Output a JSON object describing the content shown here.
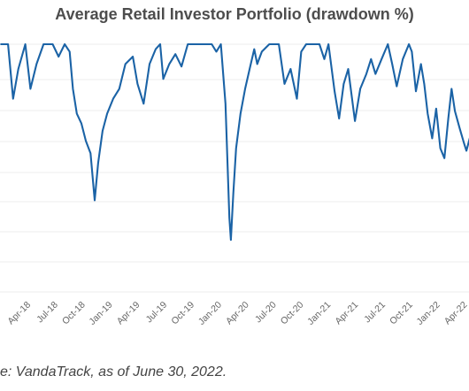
{
  "chart_data": {
    "type": "line",
    "title": "Average Retail Investor Portfolio (drawdown %)",
    "source": "e: VandaTrack, as of June 30, 2022.",
    "xlabel": "",
    "ylabel": "",
    "grid": true,
    "x_tick_labels": [
      "Apr-18",
      "Jul-18",
      "Oct-18",
      "Jan-19",
      "Apr-19",
      "Jul-19",
      "Oct-19",
      "Jan-20",
      "Apr-20",
      "Jul-20",
      "Oct-20",
      "Jan-21",
      "Apr-21",
      "Jul-21",
      "Oct-21",
      "Jan-22",
      "Apr-22"
    ],
    "series": [
      {
        "color": "#1b63a6",
        "points": [
          [
            "2018-02-15",
            0.0
          ],
          [
            "2018-03-08",
            0.0
          ],
          [
            "2018-03-25",
            -11.0
          ],
          [
            "2018-04-12",
            -5.0
          ],
          [
            "2018-05-05",
            0.0
          ],
          [
            "2018-05-22",
            -9.0
          ],
          [
            "2018-06-12",
            -4.0
          ],
          [
            "2018-07-05",
            0.0
          ],
          [
            "2018-08-05",
            0.0
          ],
          [
            "2018-08-25",
            -2.5
          ],
          [
            "2018-09-15",
            0.0
          ],
          [
            "2018-10-01",
            -1.5
          ],
          [
            "2018-10-12",
            -9.0
          ],
          [
            "2018-10-25",
            -14.0
          ],
          [
            "2018-11-10",
            -16.0
          ],
          [
            "2018-11-25",
            -19.5
          ],
          [
            "2018-12-10",
            -22.0
          ],
          [
            "2018-12-24",
            -31.5
          ],
          [
            "2019-01-05",
            -24.0
          ],
          [
            "2019-01-20",
            -17.5
          ],
          [
            "2019-02-05",
            -14.0
          ],
          [
            "2019-02-25",
            -11.0
          ],
          [
            "2019-03-15",
            -9.0
          ],
          [
            "2019-04-05",
            -4.0
          ],
          [
            "2019-04-30",
            -2.5
          ],
          [
            "2019-05-15",
            -8.0
          ],
          [
            "2019-06-05",
            -12.0
          ],
          [
            "2019-06-25",
            -4.0
          ],
          [
            "2019-07-15",
            -1.0
          ],
          [
            "2019-07-30",
            0.0
          ],
          [
            "2019-08-10",
            -7.0
          ],
          [
            "2019-08-30",
            -4.0
          ],
          [
            "2019-09-20",
            -2.0
          ],
          [
            "2019-10-10",
            -4.5
          ],
          [
            "2019-10-31",
            0.0
          ],
          [
            "2019-12-31",
            0.0
          ],
          [
            "2020-01-20",
            0.0
          ],
          [
            "2020-02-05",
            -1.5
          ],
          [
            "2020-02-20",
            0.0
          ],
          [
            "2020-03-05",
            -12.0
          ],
          [
            "2020-03-12",
            -24.0
          ],
          [
            "2020-03-18",
            -35.0
          ],
          [
            "2020-03-23",
            -39.5
          ],
          [
            "2020-04-01",
            -30.0
          ],
          [
            "2020-04-10",
            -21.0
          ],
          [
            "2020-04-25",
            -14.0
          ],
          [
            "2020-05-10",
            -9.0
          ],
          [
            "2020-05-25",
            -5.0
          ],
          [
            "2020-06-10",
            -1.0
          ],
          [
            "2020-06-20",
            -4.0
          ],
          [
            "2020-07-05",
            -1.5
          ],
          [
            "2020-07-30",
            0.0
          ],
          [
            "2020-09-01",
            0.0
          ],
          [
            "2020-09-20",
            -8.0
          ],
          [
            "2020-10-10",
            -5.0
          ],
          [
            "2020-10-31",
            -11.0
          ],
          [
            "2020-11-15",
            -1.5
          ],
          [
            "2020-12-01",
            0.0
          ],
          [
            "2021-01-15",
            0.0
          ],
          [
            "2021-02-01",
            -3.0
          ],
          [
            "2021-02-15",
            0.0
          ],
          [
            "2021-03-05",
            -9.5
          ],
          [
            "2021-03-20",
            -15.0
          ],
          [
            "2021-04-05",
            -8.0
          ],
          [
            "2021-04-20",
            -5.0
          ],
          [
            "2021-05-12",
            -15.5
          ],
          [
            "2021-05-30",
            -9.0
          ],
          [
            "2021-06-20",
            -6.0
          ],
          [
            "2021-07-05",
            -3.0
          ],
          [
            "2021-07-20",
            -6.0
          ],
          [
            "2021-08-10",
            -3.0
          ],
          [
            "2021-08-31",
            0.0
          ],
          [
            "2021-09-15",
            -4.0
          ],
          [
            "2021-09-30",
            -8.5
          ],
          [
            "2021-10-20",
            -3.0
          ],
          [
            "2021-11-10",
            0.0
          ],
          [
            "2021-11-20",
            -1.5
          ],
          [
            "2021-12-03",
            -9.5
          ],
          [
            "2021-12-20",
            -4.0
          ],
          [
            "2021-12-31",
            -8.0
          ],
          [
            "2022-01-12",
            -14.0
          ],
          [
            "2022-01-27",
            -19.0
          ],
          [
            "2022-02-10",
            -13.0
          ],
          [
            "2022-02-24",
            -21.0
          ],
          [
            "2022-03-07",
            -23.0
          ],
          [
            "2022-03-20",
            -15.0
          ],
          [
            "2022-03-31",
            -9.0
          ],
          [
            "2022-04-12",
            -13.5
          ],
          [
            "2022-04-28",
            -17.0
          ],
          [
            "2022-05-12",
            -20.0
          ],
          [
            "2022-05-20",
            -21.5
          ],
          [
            "2022-05-31",
            -19.0
          ],
          [
            "2022-06-10",
            -23.0
          ],
          [
            "2022-06-17",
            -26.5
          ],
          [
            "2022-06-30",
            -25.0
          ]
        ]
      }
    ]
  }
}
